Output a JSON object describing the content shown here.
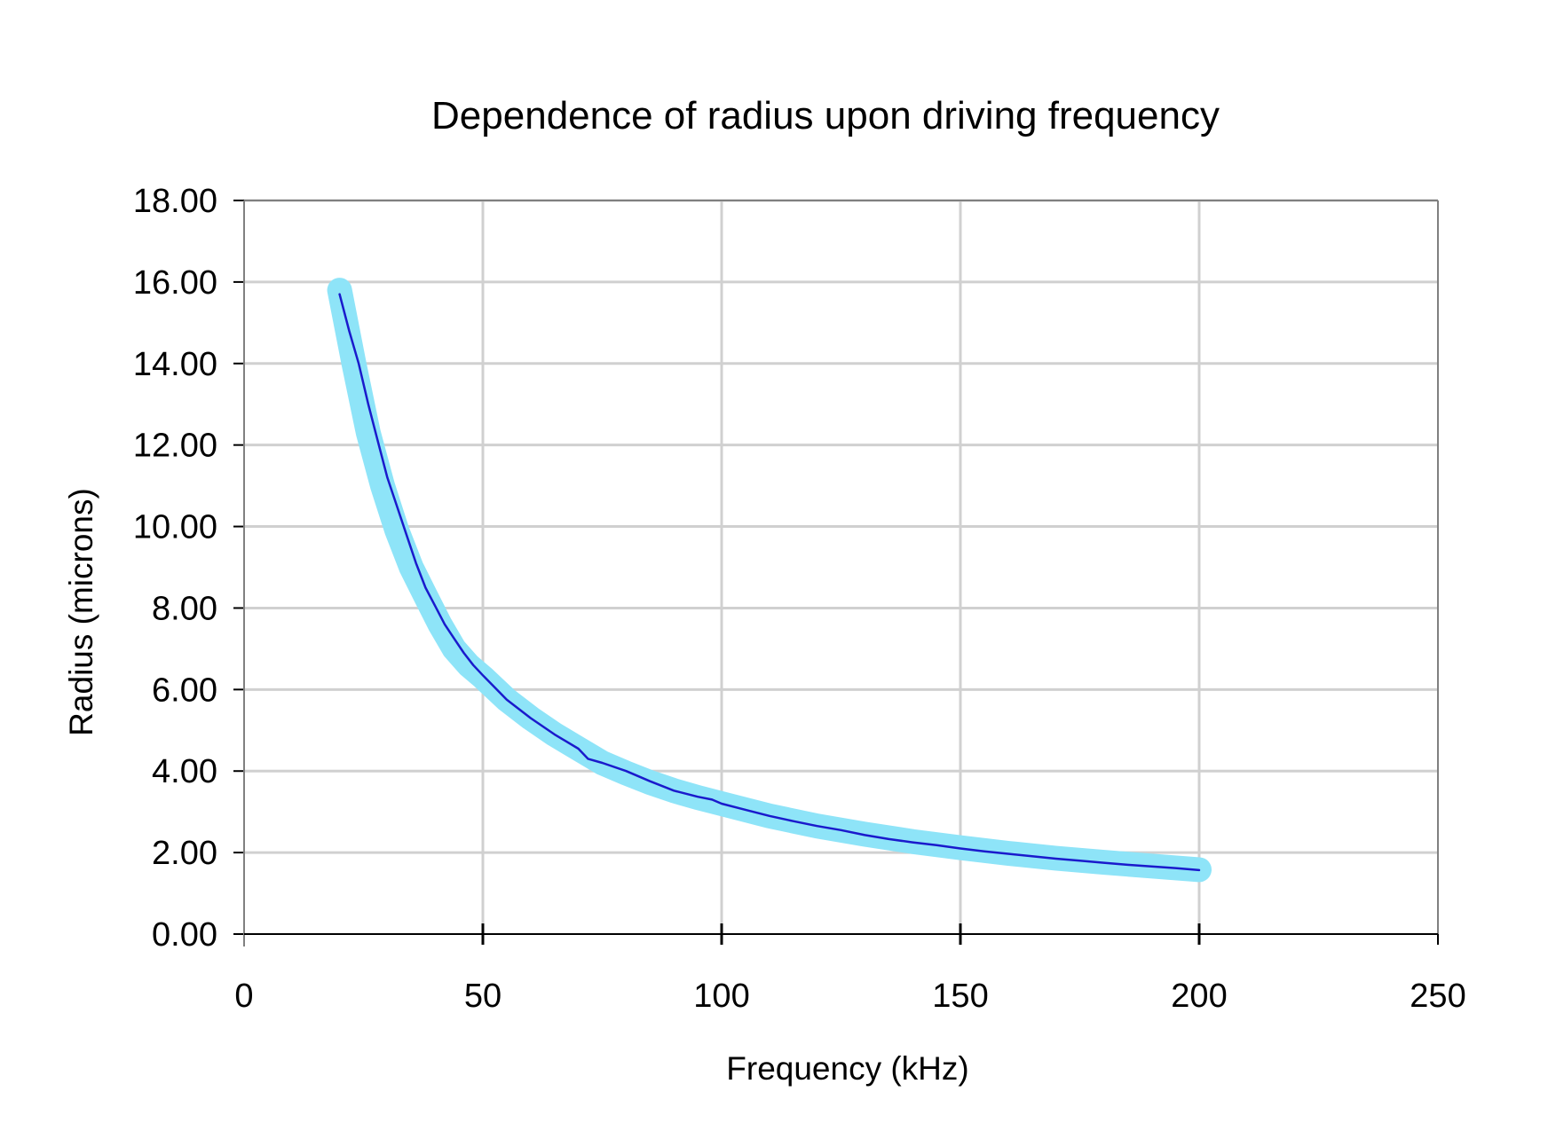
{
  "chart_data": {
    "type": "line",
    "title": "Dependence of radius upon driving frequency",
    "xlabel": "Frequency (kHz)",
    "ylabel": "Radius (microns)",
    "xlim": [
      0,
      250
    ],
    "ylim": [
      0,
      18
    ],
    "x_ticks": [
      "0",
      "50",
      "100",
      "150",
      "200",
      "250"
    ],
    "y_ticks": [
      "0.00",
      "2.00",
      "4.00",
      "6.00",
      "8.00",
      "10.00",
      "12.00",
      "14.00",
      "16.00",
      "18.00"
    ],
    "grid": true,
    "legend": "none",
    "series": [
      {
        "color": "#8ee4f8",
        "style": "thick",
        "x": [
          20,
          23,
          26,
          29,
          32,
          35,
          38,
          41,
          44,
          47,
          50,
          55,
          60,
          65,
          70,
          75,
          80,
          85,
          90,
          95,
          100,
          110,
          120,
          130,
          140,
          150,
          160,
          170,
          180,
          190,
          200
        ],
        "y": [
          15.8,
          14.0,
          12.3,
          11.0,
          9.9,
          9.0,
          8.3,
          7.6,
          7.0,
          6.6,
          6.3,
          5.75,
          5.3,
          4.9,
          4.55,
          4.2,
          3.95,
          3.72,
          3.52,
          3.35,
          3.2,
          2.9,
          2.65,
          2.45,
          2.27,
          2.12,
          1.98,
          1.86,
          1.76,
          1.67,
          1.58
        ]
      },
      {
        "color": "#1a1acc",
        "style": "thin",
        "x": [
          20,
          22,
          24,
          26,
          28,
          30,
          32,
          34,
          36,
          38,
          40,
          42,
          44,
          46,
          48,
          50,
          55,
          60,
          65,
          70,
          72,
          75,
          80,
          85,
          90,
          95,
          98,
          100,
          105,
          110,
          115,
          120,
          125,
          130,
          135,
          140,
          145,
          150,
          155,
          160,
          165,
          170,
          175,
          180,
          185,
          190,
          195,
          200
        ],
        "y": [
          15.7,
          14.8,
          14.0,
          13.0,
          12.1,
          11.2,
          10.5,
          9.8,
          9.1,
          8.5,
          8.05,
          7.6,
          7.25,
          6.9,
          6.6,
          6.35,
          5.75,
          5.3,
          4.9,
          4.55,
          4.3,
          4.2,
          4.0,
          3.75,
          3.52,
          3.37,
          3.3,
          3.2,
          3.05,
          2.9,
          2.77,
          2.65,
          2.55,
          2.43,
          2.33,
          2.25,
          2.18,
          2.1,
          2.03,
          1.97,
          1.91,
          1.85,
          1.8,
          1.75,
          1.7,
          1.66,
          1.62,
          1.57
        ]
      }
    ]
  },
  "colors": {
    "grid": "#d0d0d0",
    "axis": "#808080",
    "axis_dark": "#000000"
  }
}
